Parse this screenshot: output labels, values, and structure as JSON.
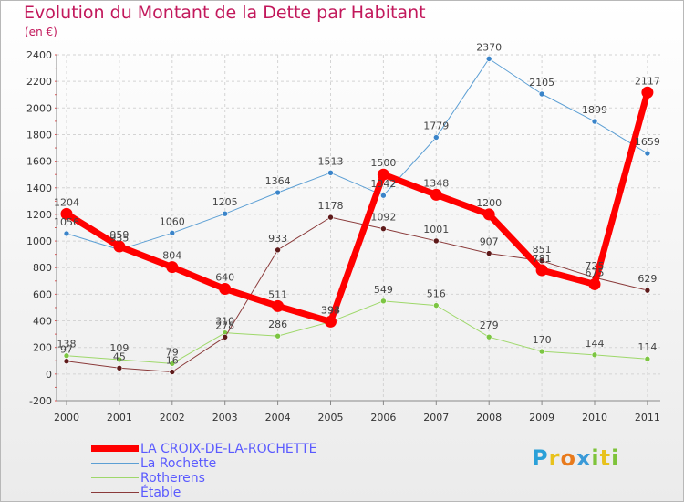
{
  "title": "Evolution du Montant de la Dette par Habitant",
  "subtitle": "(en €)",
  "brand": {
    "letters": [
      {
        "ch": "P",
        "color": "#2aa0d8"
      },
      {
        "ch": "r",
        "color": "#e8c21c"
      },
      {
        "ch": "o",
        "color": "#e87a1c"
      },
      {
        "ch": "x",
        "color": "#3a9ad8"
      },
      {
        "ch": "i",
        "color": "#7ec33a"
      },
      {
        "ch": "t",
        "color": "#e8c21c"
      },
      {
        "ch": "i",
        "color": "#7ec33a"
      }
    ]
  },
  "chart_data": {
    "type": "line",
    "x": [
      "2000",
      "2001",
      "2002",
      "2003",
      "2004",
      "2005",
      "2006",
      "2007",
      "2008",
      "2009",
      "2010",
      "2011"
    ],
    "ylim": [
      -200,
      2400
    ],
    "yticks": [
      -200,
      0,
      200,
      400,
      600,
      800,
      1000,
      1200,
      1400,
      1600,
      1800,
      2000,
      2200,
      2400
    ],
    "grid": true,
    "legend_position": "bottom-left",
    "series": [
      {
        "name": "La Rochette",
        "color": "#5c9fd4",
        "marker": "#3a84c9",
        "width": 1,
        "values": [
          1056,
          935,
          1060,
          1205,
          1364,
          1513,
          1342,
          1779,
          2370,
          2105,
          1899,
          1659
        ],
        "labels": [
          "1056",
          "935",
          "1060",
          "1205",
          "1364",
          "1513",
          "1342",
          "1779",
          "2370",
          "2105",
          "1899",
          "1659"
        ]
      },
      {
        "name": "Rotherens",
        "color": "#9ed86a",
        "marker": "#7cc542",
        "width": 1,
        "values": [
          138,
          109,
          79,
          310,
          286,
          393,
          549,
          516,
          279,
          170,
          144,
          114
        ],
        "labels": [
          "138",
          "109",
          "79",
          "310",
          "286",
          "393",
          "549",
          "516",
          "279",
          "170",
          "144",
          "114"
        ]
      },
      {
        "name": "Étable",
        "color": "#8a3a3a",
        "marker": "#5e1a1a",
        "width": 1,
        "values": [
          97,
          45,
          16,
          278,
          933,
          1178,
          1092,
          1001,
          907,
          851,
          725,
          629
        ],
        "labels": [
          "97",
          "45",
          "16",
          "278",
          "933",
          "1178",
          "1092",
          "1001",
          "907",
          "851",
          "725",
          "629"
        ]
      },
      {
        "name": "LA CROIX-DE-LA-ROCHETTE",
        "color": "#ff0000",
        "marker": "#ff0000",
        "width": 7,
        "values": [
          1204,
          959,
          804,
          640,
          511,
          394,
          1500,
          1348,
          1200,
          781,
          675,
          2117
        ],
        "labels": [
          "1204",
          "959",
          "804",
          "640",
          "511",
          "394",
          "1500",
          "1348",
          "1200",
          "781",
          "675",
          "2117"
        ]
      }
    ],
    "legend": [
      {
        "name": "LA CROIX-DE-LA-ROCHETTE",
        "color": "#ff0000",
        "thickness": 7
      },
      {
        "name": "La Rochette",
        "color": "#5c9fd4",
        "thickness": 1
      },
      {
        "name": "Rotherens",
        "color": "#9ed86a",
        "thickness": 1
      },
      {
        "name": "Étable",
        "color": "#8a3a3a",
        "thickness": 1
      }
    ]
  }
}
